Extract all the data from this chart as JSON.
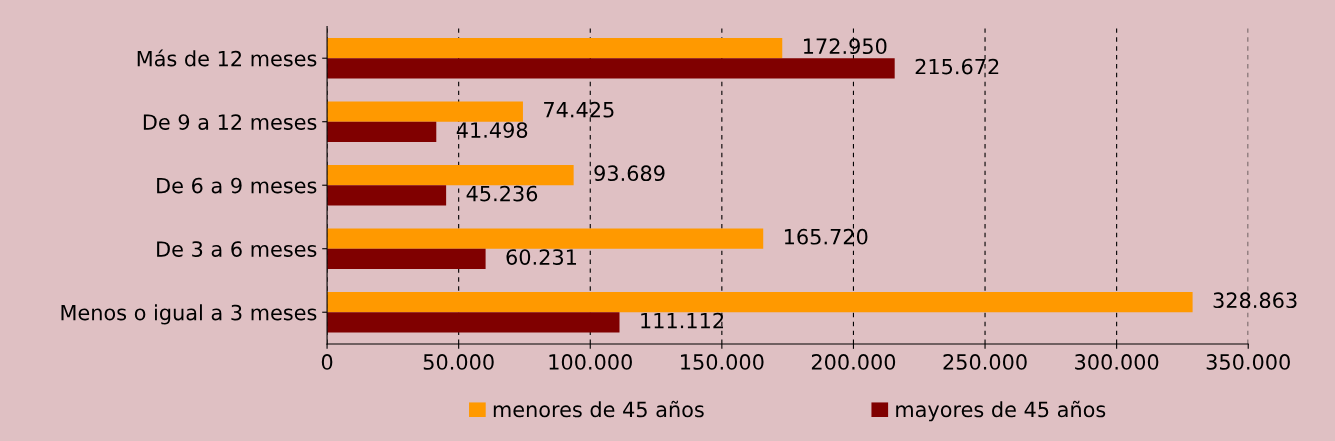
{
  "chart_data": {
    "type": "bar",
    "orientation": "horizontal",
    "categories": [
      "Más de 12 meses",
      "De 9 a 12 meses",
      "De 6 a 9 meses",
      "De 3 a 6 meses",
      "Menos o igual a 3 meses"
    ],
    "series": [
      {
        "name": "menores de 45 años",
        "color": "#ff9900",
        "values": [
          172950,
          74425,
          93689,
          165720,
          328863
        ],
        "value_labels": [
          "172.950",
          "74.425",
          "93.689",
          "165.720",
          "328.863"
        ]
      },
      {
        "name": "mayores de 45 años",
        "color": "#800000",
        "values": [
          215672,
          41498,
          45236,
          60231,
          111112
        ],
        "value_labels": [
          "215.672",
          "41.498",
          "45.236",
          "60.231",
          "111.112"
        ]
      }
    ],
    "xlim": [
      0,
      350000
    ],
    "xticks": [
      0,
      {
        "value": 50000,
        "label": "50.000"
      },
      {
        "value": 100000,
        "label": "100.000"
      },
      {
        "value": 150000,
        "label": "150.000"
      },
      {
        "value": 200000,
        "label": "200.000"
      },
      {
        "value": 250000,
        "label": "250.000"
      },
      {
        "value": 300000,
        "label": "300.000"
      },
      {
        "value": 350000,
        "label": "350.000"
      }
    ],
    "grid": "x",
    "legend": "bottom"
  }
}
